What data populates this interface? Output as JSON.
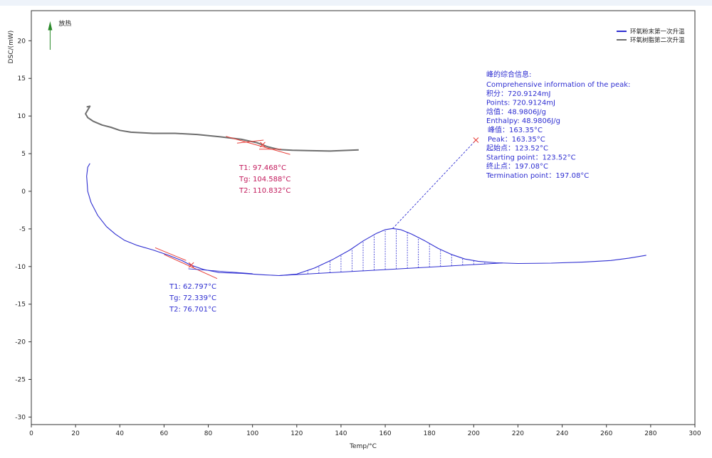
{
  "chart_data": {
    "type": "line",
    "xlabel": "Temp/°C",
    "ylabel": "DSC/(mW)",
    "xlim": [
      0,
      300
    ],
    "ylim": [
      -31,
      24
    ],
    "xticks": [
      0,
      20,
      40,
      60,
      80,
      100,
      120,
      140,
      160,
      180,
      200,
      220,
      240,
      260,
      280,
      300
    ],
    "yticks": [
      20,
      15,
      10,
      5,
      0,
      -5,
      -10,
      -15,
      -20,
      -25,
      -30
    ],
    "exo_label": "放热",
    "series": [
      {
        "name": "环氧粉末第一次升温",
        "color": "#2e2ed1",
        "points": [
          [
            26.5,
            3.7
          ],
          [
            25.5,
            3.2
          ],
          [
            25,
            2.0
          ],
          [
            25.5,
            0
          ],
          [
            27,
            -1.5
          ],
          [
            30,
            -3.2
          ],
          [
            34,
            -4.7
          ],
          [
            38,
            -5.7
          ],
          [
            42,
            -6.5
          ],
          [
            48,
            -7.2
          ],
          [
            55,
            -7.8
          ],
          [
            62,
            -8.5
          ],
          [
            68,
            -9.2
          ],
          [
            72,
            -9.8
          ],
          [
            78,
            -10.4
          ],
          [
            85,
            -10.8
          ],
          [
            95,
            -10.9
          ],
          [
            105,
            -11.1
          ],
          [
            112,
            -11.2
          ],
          [
            120,
            -11.0
          ],
          [
            128,
            -10.2
          ],
          [
            136,
            -9.1
          ],
          [
            144,
            -7.8
          ],
          [
            150,
            -6.6
          ],
          [
            156,
            -5.6
          ],
          [
            160,
            -5.1
          ],
          [
            163.35,
            -4.95
          ],
          [
            167,
            -5.1
          ],
          [
            172,
            -5.7
          ],
          [
            178,
            -6.6
          ],
          [
            184,
            -7.6
          ],
          [
            190,
            -8.4
          ],
          [
            196,
            -9.0
          ],
          [
            202,
            -9.3
          ],
          [
            210,
            -9.5
          ],
          [
            220,
            -9.6
          ],
          [
            235,
            -9.55
          ],
          [
            250,
            -9.4
          ],
          [
            262,
            -9.2
          ],
          [
            270,
            -8.9
          ],
          [
            278,
            -8.5
          ]
        ]
      },
      {
        "name": "环氧树脂第二次升温",
        "color": "#6e6e6e",
        "points": [
          [
            25,
            11.2
          ],
          [
            26.5,
            11.3
          ],
          [
            25.5,
            10.8
          ],
          [
            24.5,
            10.3
          ],
          [
            25.5,
            9.8
          ],
          [
            28,
            9.3
          ],
          [
            32,
            8.8
          ],
          [
            36,
            8.5
          ],
          [
            40,
            8.1
          ],
          [
            45,
            7.85
          ],
          [
            55,
            7.7
          ],
          [
            65,
            7.7
          ],
          [
            75,
            7.55
          ],
          [
            85,
            7.25
          ],
          [
            95,
            6.9
          ],
          [
            102,
            6.45
          ],
          [
            107,
            5.9
          ],
          [
            112,
            5.55
          ],
          [
            118,
            5.45
          ],
          [
            125,
            5.4
          ],
          [
            135,
            5.35
          ],
          [
            148,
            5.5
          ]
        ]
      }
    ],
    "peak_info": {
      "header": "峰的综合信息:",
      "lines": [
        "Comprehensive information of the peak:",
        "积分：720.9124mJ",
        "Points: 720.9124mJ",
        "焓值：48.9806J/g",
        "Enthalpy: 48.9806J/g",
        "峰值：163.35°C",
        "Peak：163.35°C",
        "起始点：123.52°C",
        "Starting point：123.52°C",
        "终止点：197.08°C",
        "Termination point：197.08°C"
      ],
      "start": 123.52,
      "end": 197.08,
      "peak": 163.35,
      "marker": [
        201,
        6.8
      ]
    },
    "glass_transitions": [
      {
        "series": "环氧粉末第一次升温",
        "color": "#2e2ed1",
        "marker_color": "#e8403a",
        "T1": "T1: 62.797°C",
        "Tg": "Tg: 72.339°C",
        "T2": "T2: 76.701°C",
        "marker": [
          72.3,
          -9.8
        ]
      },
      {
        "series": "环氧树脂第二次升温",
        "color": "#c2185b",
        "marker_color": "#e8403a",
        "T1": "T1: 97.468°C",
        "Tg": "Tg: 104.588°C",
        "T2": "T2: 110.832°C",
        "marker": [
          104.6,
          6.2
        ]
      }
    ],
    "legend_position": "top-right",
    "grid": false
  }
}
